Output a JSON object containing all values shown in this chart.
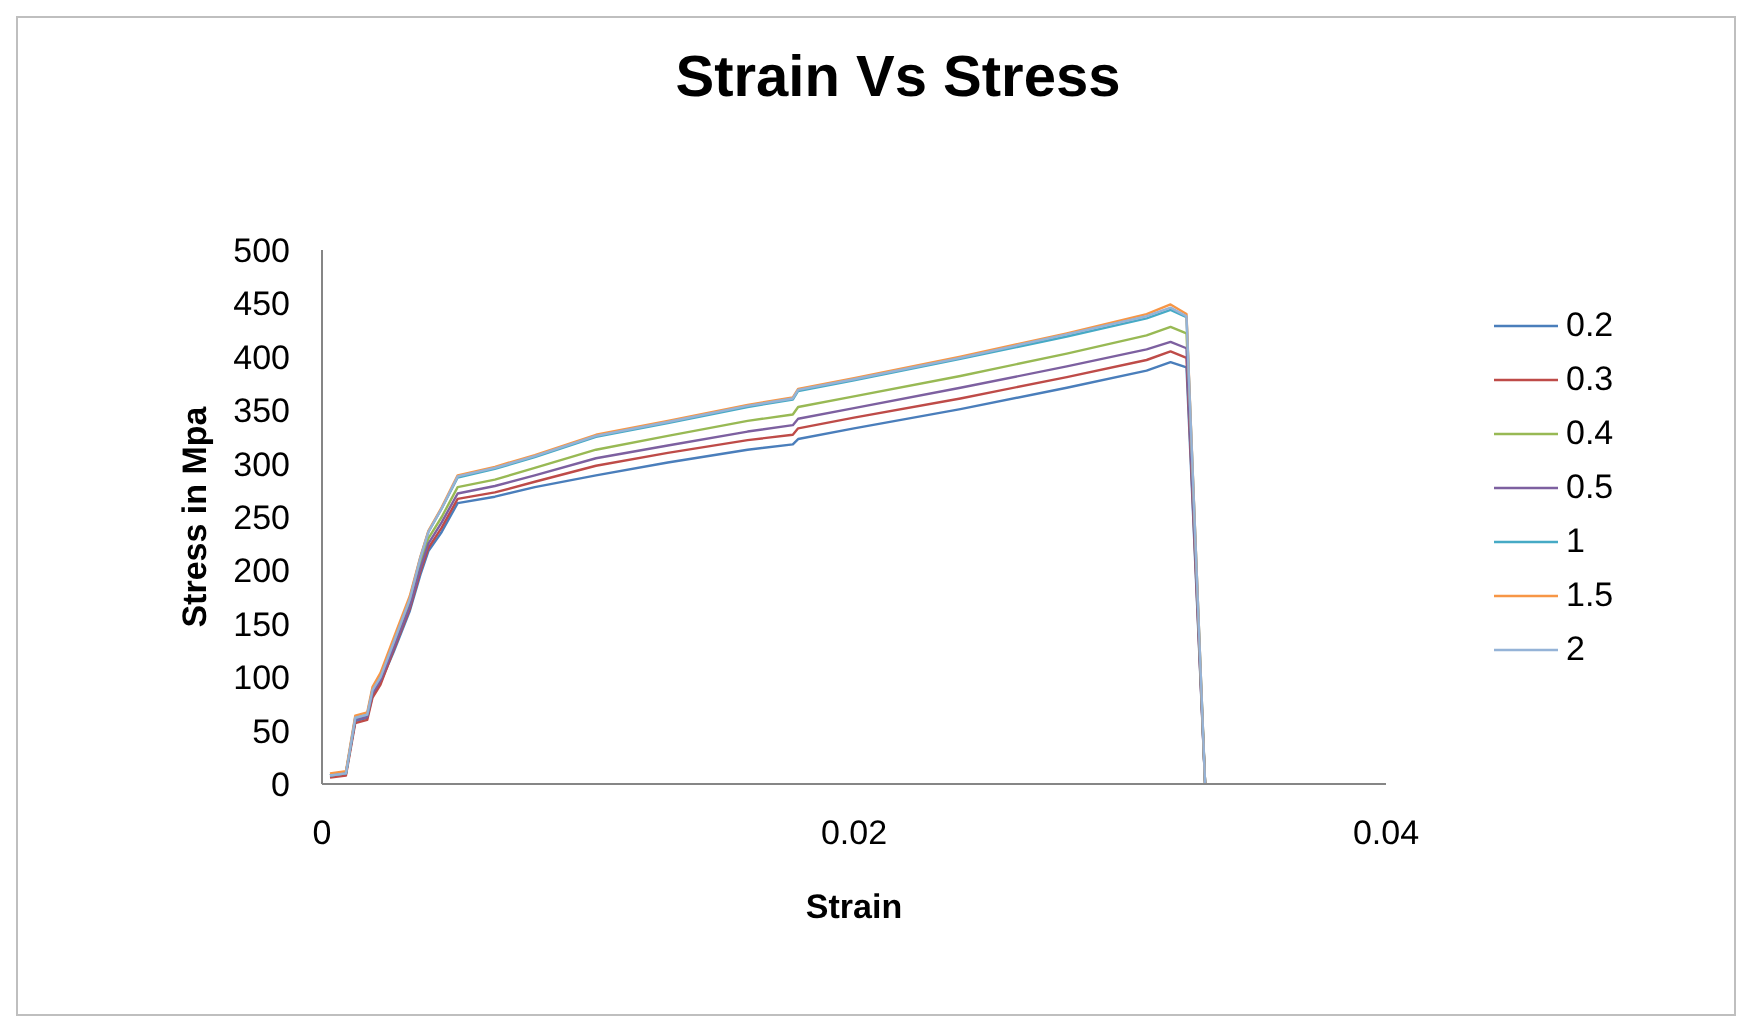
{
  "chart_data": {
    "type": "line",
    "title": "Strain Vs Stress",
    "xlabel": "Strain",
    "ylabel": "Stress in Mpa",
    "x": [
      0.0003,
      0.0009,
      0.00125,
      0.0017,
      0.0019,
      0.0022,
      0.0027,
      0.0033,
      0.0037,
      0.004,
      0.0045,
      0.0051,
      0.0065,
      0.008,
      0.0103,
      0.013,
      0.016,
      0.0177,
      0.0179,
      0.02,
      0.024,
      0.028,
      0.031,
      0.0319,
      0.0325,
      0.0332
    ],
    "series": [
      {
        "name": "0.2",
        "color": "#4a7ebb",
        "values": [
          8,
          10,
          59,
          62,
          83,
          95,
          124,
          162,
          196,
          218,
          236,
          263,
          269,
          278,
          289,
          301,
          313,
          318,
          323,
          333,
          351,
          371,
          387,
          395,
          390,
          0
        ]
      },
      {
        "name": "0.3",
        "color": "#be4b48",
        "values": [
          6,
          8,
          57,
          60,
          81,
          93,
          126,
          164,
          199,
          221,
          240,
          267,
          273,
          283,
          298,
          310,
          322,
          327,
          333,
          343,
          361,
          381,
          397,
          405,
          399,
          0
        ]
      },
      {
        "name": "0.4",
        "color": "#98b954",
        "values": [
          8,
          10,
          61,
          64,
          87,
          99,
          131,
          170,
          207,
          230,
          250,
          278,
          285,
          296,
          313,
          326,
          340,
          346,
          353,
          363,
          382,
          403,
          420,
          428,
          422,
          0
        ]
      },
      {
        "name": "0.5",
        "color": "#7d60a0",
        "values": [
          8,
          10,
          60,
          63,
          85,
          97,
          128,
          166,
          202,
          225,
          245,
          272,
          279,
          289,
          305,
          317,
          330,
          336,
          342,
          352,
          371,
          391,
          407,
          414,
          408,
          0
        ]
      },
      {
        "name": "1",
        "color": "#46aac5",
        "values": [
          8,
          10,
          62,
          65,
          89,
          101,
          134,
          174,
          212,
          236,
          258,
          287,
          295,
          306,
          325,
          338,
          353,
          360,
          368,
          378,
          398,
          419,
          436,
          444,
          437,
          0
        ]
      },
      {
        "name": "1.5",
        "color": "#f79646",
        "values": [
          10,
          12,
          64,
          67,
          91,
          104,
          137,
          176,
          213,
          237,
          259,
          289,
          297,
          308,
          327,
          340,
          355,
          362,
          370,
          380,
          400,
          422,
          440,
          449,
          440,
          0
        ]
      },
      {
        "name": "2",
        "color": "#95b3d7",
        "values": [
          8,
          10,
          62,
          65,
          88,
          100,
          133,
          173,
          212,
          236,
          258,
          288,
          296,
          307,
          326,
          339,
          354,
          361,
          369,
          379,
          399,
          421,
          438,
          446,
          438,
          0
        ]
      }
    ],
    "xlim": [
      0,
      0.04
    ],
    "xticks": [
      0,
      0.02,
      0.04
    ],
    "ylim": [
      0,
      500
    ],
    "yticks": [
      0,
      50,
      100,
      150,
      200,
      250,
      300,
      350,
      400,
      450,
      500
    ],
    "grid": false,
    "legend": "right",
    "marker": "none",
    "line_style": "solid"
  }
}
